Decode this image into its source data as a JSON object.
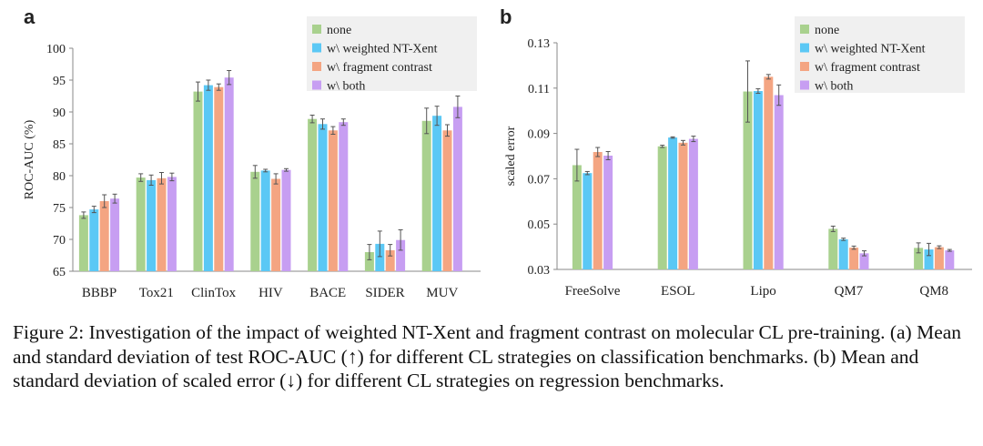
{
  "colors": {
    "none": "#a9d18e",
    "weighted": "#5bc8f5",
    "fragment": "#f4a582",
    "both": "#c79ef2",
    "error": "#555555",
    "axis": "#888888"
  },
  "chart_data": [
    {
      "type": "bar",
      "panel_letter": "a",
      "title": "",
      "xlabel": "",
      "ylabel": "ROC-AUC (%)",
      "ylim": [
        65,
        100
      ],
      "yticks": [
        65,
        70,
        75,
        80,
        85,
        90,
        95,
        100
      ],
      "tick_decimals": 0,
      "grid": false,
      "legend_position": "top-right",
      "categories": [
        "BBBP",
        "Tox21",
        "ClinTox",
        "HIV",
        "BACE",
        "SIDER",
        "MUV"
      ],
      "series": [
        {
          "name": "none",
          "color_key": "none",
          "values": [
            73.8,
            79.7,
            93.2,
            80.6,
            88.9,
            68.0,
            88.6
          ],
          "errors": [
            0.5,
            0.6,
            1.5,
            1.0,
            0.6,
            1.2,
            2.0
          ]
        },
        {
          "name": "w\\ weighted NT-Xent",
          "color_key": "weighted",
          "values": [
            74.7,
            79.3,
            94.2,
            80.8,
            88.1,
            69.3,
            89.4
          ],
          "errors": [
            0.5,
            0.8,
            0.8,
            0.2,
            0.8,
            2.0,
            1.5
          ]
        },
        {
          "name": "w\\ fragment contrast",
          "color_key": "fragment",
          "values": [
            76.0,
            79.6,
            93.9,
            79.5,
            87.1,
            68.3,
            87.1
          ],
          "errors": [
            1.0,
            0.9,
            0.5,
            0.8,
            0.6,
            0.9,
            0.9
          ]
        },
        {
          "name": "w\\ both",
          "color_key": "both",
          "values": [
            76.4,
            79.8,
            95.4,
            80.9,
            88.4,
            69.9,
            90.8
          ],
          "errors": [
            0.7,
            0.6,
            1.1,
            0.2,
            0.5,
            1.6,
            1.7
          ]
        }
      ]
    },
    {
      "type": "bar",
      "panel_letter": "b",
      "title": "",
      "xlabel": "",
      "ylabel": "scaled error",
      "ylim": [
        0.03,
        0.13
      ],
      "yticks": [
        0.03,
        0.05,
        0.07,
        0.09,
        0.11,
        0.13
      ],
      "tick_decimals": 2,
      "grid": false,
      "legend_position": "top-right",
      "categories": [
        "FreeSolve",
        "ESOL",
        "Lipo",
        "QM7",
        "QM8"
      ],
      "series": [
        {
          "name": "none",
          "color_key": "none",
          "values": [
            0.076,
            0.0843,
            0.1085,
            0.0479,
            0.0395
          ],
          "errors": [
            0.007,
            0.0005,
            0.0135,
            0.0012,
            0.0022
          ]
        },
        {
          "name": "w\\ weighted NT-Xent",
          "color_key": "weighted",
          "values": [
            0.0725,
            0.0882,
            0.1087,
            0.0433,
            0.0388
          ],
          "errors": [
            0.0007,
            0.0003,
            0.001,
            0.0005,
            0.0027
          ]
        },
        {
          "name": "w\\ fragment contrast",
          "color_key": "fragment",
          "values": [
            0.0818,
            0.0859,
            0.115,
            0.0396,
            0.0398
          ],
          "errors": [
            0.002,
            0.001,
            0.001,
            0.0007,
            0.0006
          ]
        },
        {
          "name": "w\\ both",
          "color_key": "both",
          "values": [
            0.0802,
            0.0876,
            0.1069,
            0.0371,
            0.0384
          ],
          "errors": [
            0.0018,
            0.0012,
            0.0045,
            0.0011,
            0.0004
          ]
        }
      ]
    }
  ],
  "caption": {
    "text": "Figure 2: Investigation of the impact of weighted NT-Xent and fragment contrast on molecular CL pre-training. (a) Mean and standard deviation of test ROC-AUC (↑) for different CL strategies on classification benchmarks. (b) Mean and standard deviation of scaled error (↓) for different CL strategies on regression benchmarks."
  }
}
